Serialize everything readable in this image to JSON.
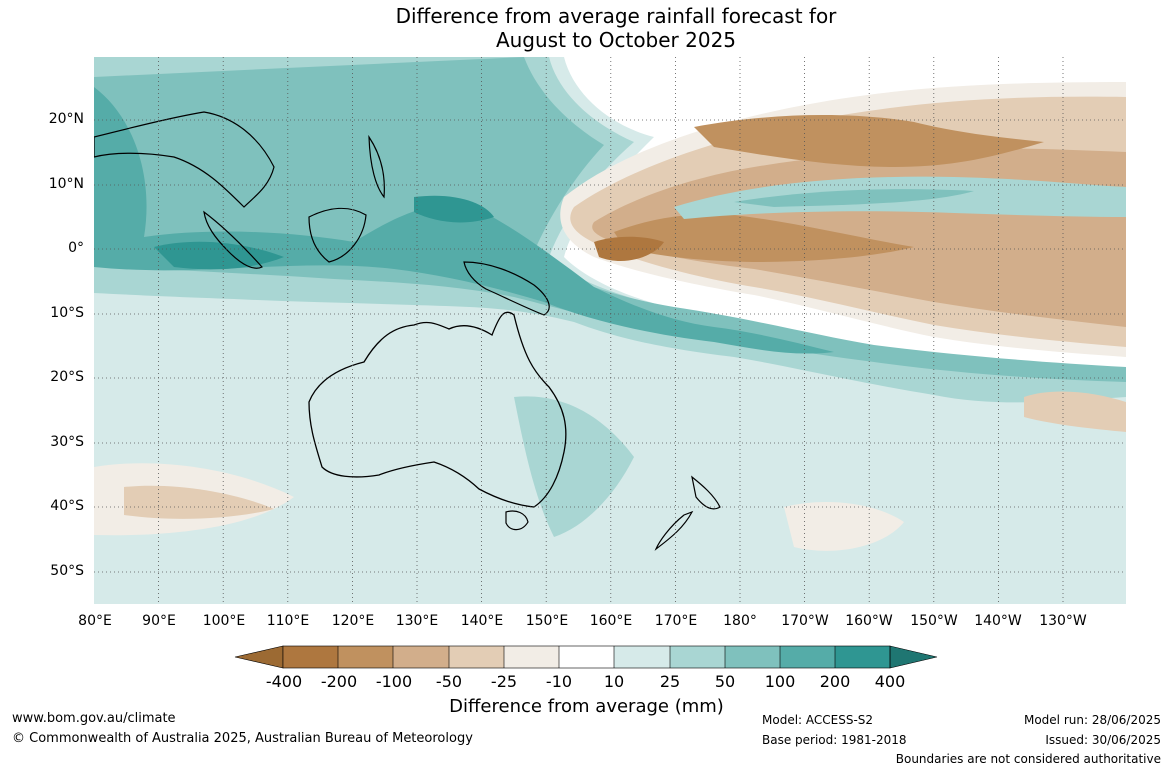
{
  "title": {
    "line1": "Difference from average rainfall forecast for",
    "line2": "August to October 2025"
  },
  "lat_labels": [
    "20°N",
    "10°N",
    "0°",
    "10°S",
    "20°S",
    "30°S",
    "40°S",
    "50°S"
  ],
  "lon_labels": [
    "80°E",
    "90°E",
    "100°E",
    "110°E",
    "120°E",
    "130°E",
    "140°E",
    "150°E",
    "160°E",
    "170°E",
    "180°",
    "170°W",
    "160°W",
    "150°W",
    "140°W",
    "130°W"
  ],
  "colorbar": {
    "title": "Difference from average (mm)",
    "tick_labels": [
      "-400",
      "-200",
      "-100",
      "-50",
      "-25",
      "-10",
      "10",
      "25",
      "50",
      "100",
      "200",
      "400"
    ],
    "colors": {
      "below_min": "#9c6a33",
      "b1": "#ae773f",
      "b2": "#c0915f",
      "b3": "#d2ae8b",
      "b4": "#e3cdb5",
      "b5": "#f2ede6",
      "neutral": "#ffffff",
      "g1": "#d6eae9",
      "g2": "#a9d6d3",
      "g3": "#7fc1bd",
      "g4": "#55aca8",
      "g5": "#2f9692",
      "above_max": "#1f7672"
    }
  },
  "footer": {
    "website": "www.bom.gov.au/climate",
    "copyright": "© Commonwealth of Australia 2025, Australian Bureau of Meteorology",
    "model": "Model: ACCESS-S2",
    "base_period": "Base period: 1981-2018",
    "model_run": "Model run: 28/06/2025",
    "issued": "Issued: 30/06/2025",
    "boundaries": "Boundaries are not considered authoritative"
  }
}
